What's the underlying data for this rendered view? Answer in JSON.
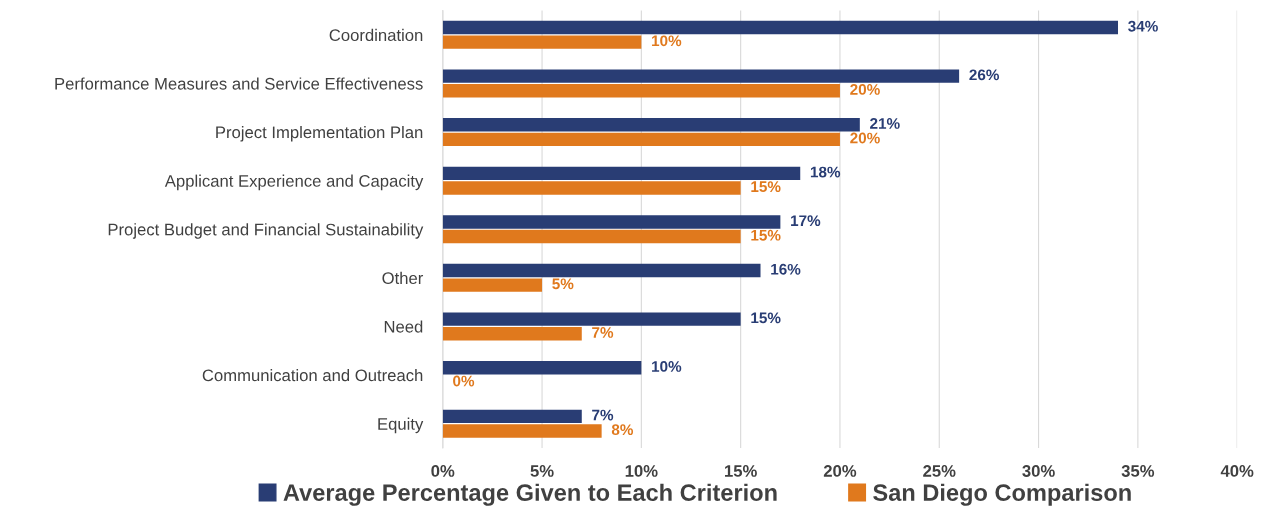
{
  "chart_data": {
    "type": "bar",
    "orientation": "horizontal",
    "categories": [
      "Coordination",
      "Performance Measures and Service Effectiveness",
      "Project Implementation Plan",
      "Applicant Experience and Capacity",
      "Project Budget and Financial Sustainability",
      "Other",
      "Need",
      "Communication and Outreach",
      "Equity"
    ],
    "series": [
      {
        "name": "Average Percentage Given to Each Criterion",
        "color": "#293d74",
        "values": [
          34,
          26,
          21,
          18,
          17,
          16,
          15,
          10,
          7
        ],
        "value_labels": [
          "34%",
          "26%",
          "21%",
          "18%",
          "17%",
          "16%",
          "15%",
          "10%",
          "7%"
        ]
      },
      {
        "name": "San Diego Comparison",
        "color": "#e0791d",
        "values": [
          10,
          20,
          20,
          15,
          15,
          5,
          7,
          0,
          8
        ],
        "value_labels": [
          "10%",
          "20%",
          "20%",
          "15%",
          "15%",
          "5%",
          "7%",
          "0%",
          "8%"
        ]
      }
    ],
    "xlim": [
      0,
      40
    ],
    "xticks": [
      {
        "value": 0,
        "label": "0%"
      },
      {
        "value": 5,
        "label": "5%"
      },
      {
        "value": 10,
        "label": "10%"
      },
      {
        "value": 15,
        "label": "15%"
      },
      {
        "value": 20,
        "label": "20%"
      },
      {
        "value": 25,
        "label": "25%"
      },
      {
        "value": 30,
        "label": "30%"
      },
      {
        "value": 35,
        "label": "35%"
      },
      {
        "value": 40,
        "label": "40%"
      }
    ],
    "grid": "x",
    "legend": "bottom"
  }
}
